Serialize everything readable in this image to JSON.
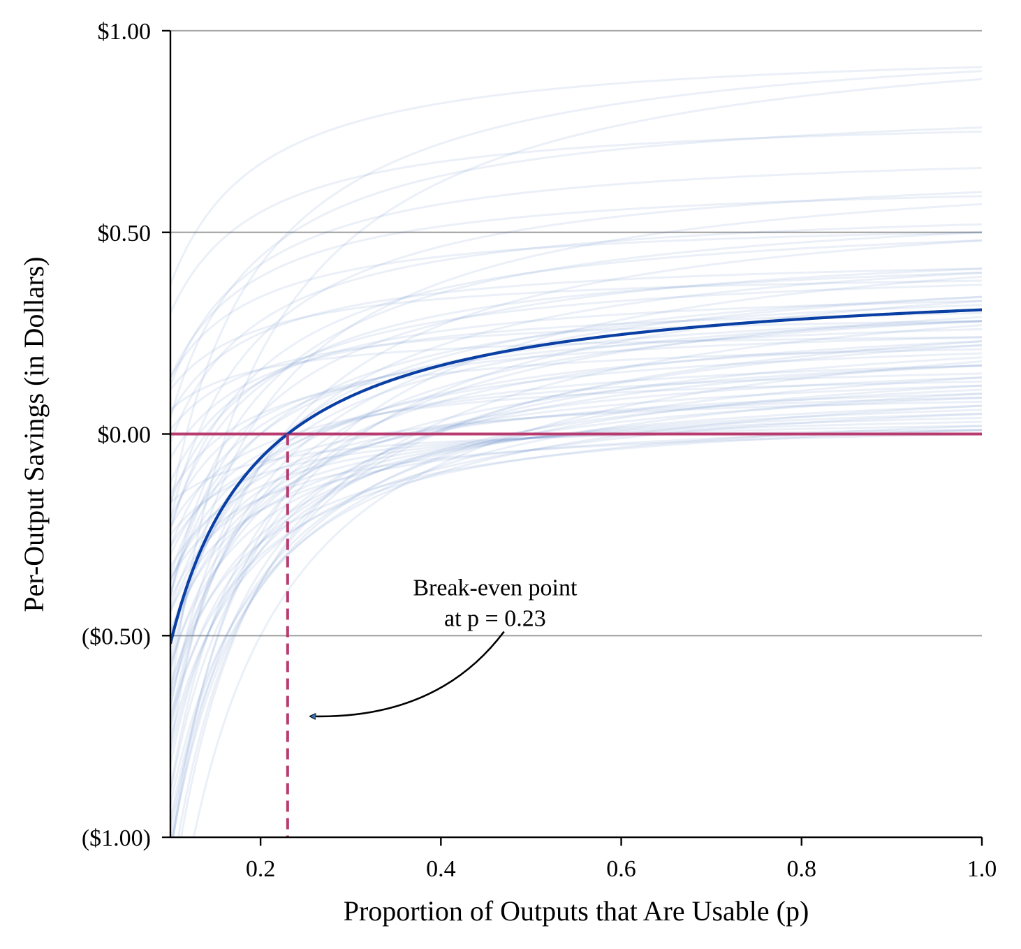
{
  "chart_data": {
    "type": "line",
    "title": "",
    "xlabel": "Proportion of Outputs that Are Usable (p)",
    "ylabel": "Per-Output Savings (in Dollars)",
    "xlim": [
      0.1,
      1.0
    ],
    "ylim": [
      -1.0,
      1.0
    ],
    "x_ticks": [
      0.2,
      0.4,
      0.6,
      0.8,
      1.0
    ],
    "x_tick_labels": [
      "0.2",
      "0.4",
      "0.6",
      "0.8",
      "1.0"
    ],
    "y_ticks": [
      1.0,
      0.5,
      0.0,
      -0.5,
      -1.0
    ],
    "y_tick_labels": [
      "$1.00",
      "$0.50",
      "$0.00",
      "($0.50)",
      "($1.00)"
    ],
    "horizontal_grid": [
      1.0,
      0.5,
      -0.5
    ],
    "legend": "none",
    "model": "savings(p) = a - b / p",
    "main_curve": {
      "a": 0.4,
      "b": 0.092,
      "color": "#0a3fa3"
    },
    "sample_curves_color": "#4a78c2",
    "sample_curves": [
      {
        "a": 1.05,
        "b": 0.17
      },
      {
        "a": 1.02,
        "b": 0.12
      },
      {
        "a": 0.97,
        "b": 0.06
      },
      {
        "a": 0.84,
        "b": 0.08
      },
      {
        "a": 0.8,
        "b": 0.05
      },
      {
        "a": 0.72,
        "b": 0.06
      },
      {
        "a": 0.69,
        "b": 0.09
      },
      {
        "a": 0.64,
        "b": 0.05
      },
      {
        "a": 0.6,
        "b": 0.1
      },
      {
        "a": 0.56,
        "b": 0.08
      },
      {
        "a": 0.54,
        "b": 0.04
      },
      {
        "a": 0.52,
        "b": 0.12
      },
      {
        "a": 0.5,
        "b": 0.09
      },
      {
        "a": 0.47,
        "b": 0.07
      },
      {
        "a": 0.46,
        "b": 0.12
      },
      {
        "a": 0.45,
        "b": 0.04
      },
      {
        "a": 0.44,
        "b": 0.1
      },
      {
        "a": 0.43,
        "b": 0.06
      },
      {
        "a": 0.42,
        "b": 0.13
      },
      {
        "a": 0.41,
        "b": 0.03
      },
      {
        "a": 0.4,
        "b": 0.08
      },
      {
        "a": 0.39,
        "b": 0.11
      },
      {
        "a": 0.38,
        "b": 0.05
      },
      {
        "a": 0.37,
        "b": 0.09
      },
      {
        "a": 0.36,
        "b": 0.14
      },
      {
        "a": 0.35,
        "b": 0.07
      },
      {
        "a": 0.34,
        "b": 0.04
      },
      {
        "a": 0.33,
        "b": 0.1
      },
      {
        "a": 0.32,
        "b": 0.06
      },
      {
        "a": 0.31,
        "b": 0.12
      },
      {
        "a": 0.3,
        "b": 0.08
      },
      {
        "a": 0.29,
        "b": 0.05
      },
      {
        "a": 0.28,
        "b": 0.11
      },
      {
        "a": 0.27,
        "b": 0.07
      },
      {
        "a": 0.26,
        "b": 0.09
      },
      {
        "a": 0.25,
        "b": 0.04
      },
      {
        "a": 0.24,
        "b": 0.12
      },
      {
        "a": 0.23,
        "b": 0.06
      },
      {
        "a": 0.22,
        "b": 0.08
      },
      {
        "a": 0.21,
        "b": 0.1
      },
      {
        "a": 0.2,
        "b": 0.05
      },
      {
        "a": 0.19,
        "b": 0.07
      },
      {
        "a": 0.18,
        "b": 0.09
      },
      {
        "a": 0.17,
        "b": 0.04
      },
      {
        "a": 0.16,
        "b": 0.06
      },
      {
        "a": 0.15,
        "b": 0.08
      },
      {
        "a": 0.14,
        "b": 0.05
      },
      {
        "a": 0.13,
        "b": 0.07
      },
      {
        "a": 0.12,
        "b": 0.04
      },
      {
        "a": 0.11,
        "b": 0.06
      },
      {
        "a": 0.1,
        "b": 0.08
      },
      {
        "a": 0.09,
        "b": 0.05
      },
      {
        "a": 0.08,
        "b": 0.07
      },
      {
        "a": 0.07,
        "b": 0.04
      },
      {
        "a": 0.06,
        "b": 0.05
      },
      {
        "a": 0.05,
        "b": 0.03
      },
      {
        "a": 0.04,
        "b": 0.04
      },
      {
        "a": 0.03,
        "b": 0.02
      },
      {
        "a": 0.55,
        "b": 0.16
      },
      {
        "a": 0.48,
        "b": 0.15
      },
      {
        "a": 0.43,
        "b": 0.16
      },
      {
        "a": 0.38,
        "b": 0.15
      },
      {
        "a": 0.35,
        "b": 0.17
      },
      {
        "a": 0.62,
        "b": 0.14
      },
      {
        "a": 0.7,
        "b": 0.13
      },
      {
        "a": 0.58,
        "b": 0.06
      },
      {
        "a": 0.27,
        "b": 0.13
      },
      {
        "a": 0.22,
        "b": 0.12
      },
      {
        "a": 0.18,
        "b": 0.11
      },
      {
        "a": 0.14,
        "b": 0.09
      },
      {
        "a": 0.31,
        "b": 0.03
      },
      {
        "a": 0.26,
        "b": 0.02
      }
    ],
    "zero_line": {
      "y": 0.0,
      "color": "#b83b6f"
    },
    "break_even": {
      "p": 0.23,
      "color": "#b83b6f"
    },
    "annotation": {
      "line1": "Break-even point",
      "line2": "at p = 0.23",
      "text_x": 0.45,
      "text_y": -0.4,
      "arrow_from": [
        0.47,
        -0.49
      ],
      "arrow_to": [
        0.255,
        -0.7
      ]
    }
  }
}
